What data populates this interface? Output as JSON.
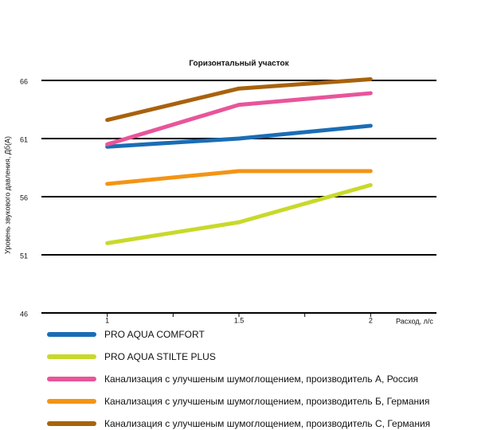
{
  "chart_data": {
    "type": "line",
    "title": "Горизонтальный участок",
    "y_label": "Уровень звукового давления, Дб(А)",
    "x_label": "Расход, л/с",
    "x": [
      1,
      1.5,
      2
    ],
    "xlim": [
      0.75,
      2.25
    ],
    "xticks": [
      1,
      1.5,
      2
    ],
    "xminorticks": [
      1.25,
      1.75
    ],
    "ylim": [
      46,
      66
    ],
    "yticks": [
      46,
      51,
      56,
      61,
      66
    ],
    "grid": true,
    "series": [
      {
        "name": "PRO AQUA  COMFORT",
        "color": "#1a6db5",
        "values": [
          60.3,
          61,
          62.1
        ]
      },
      {
        "name": "PRO AQUA  STILTE PLUS",
        "color": "#c8d92a",
        "values": [
          52,
          53.8,
          57
        ]
      },
      {
        "name": "Канализация с улучшеным шумоглощением, производитель А, Россия",
        "color": "#e8559a",
        "values": [
          60.5,
          63.9,
          64.9
        ]
      },
      {
        "name": "Канализация с улучшеным шумоглощением, производитель Б, Германия",
        "color": "#f39415",
        "values": [
          57.1,
          58.2,
          58.2
        ]
      },
      {
        "name": "Канализация с улучшеным шумоглощением, производитель С, Германия",
        "color": "#a8620d",
        "values": [
          62.6,
          65.3,
          66.1
        ]
      }
    ]
  }
}
